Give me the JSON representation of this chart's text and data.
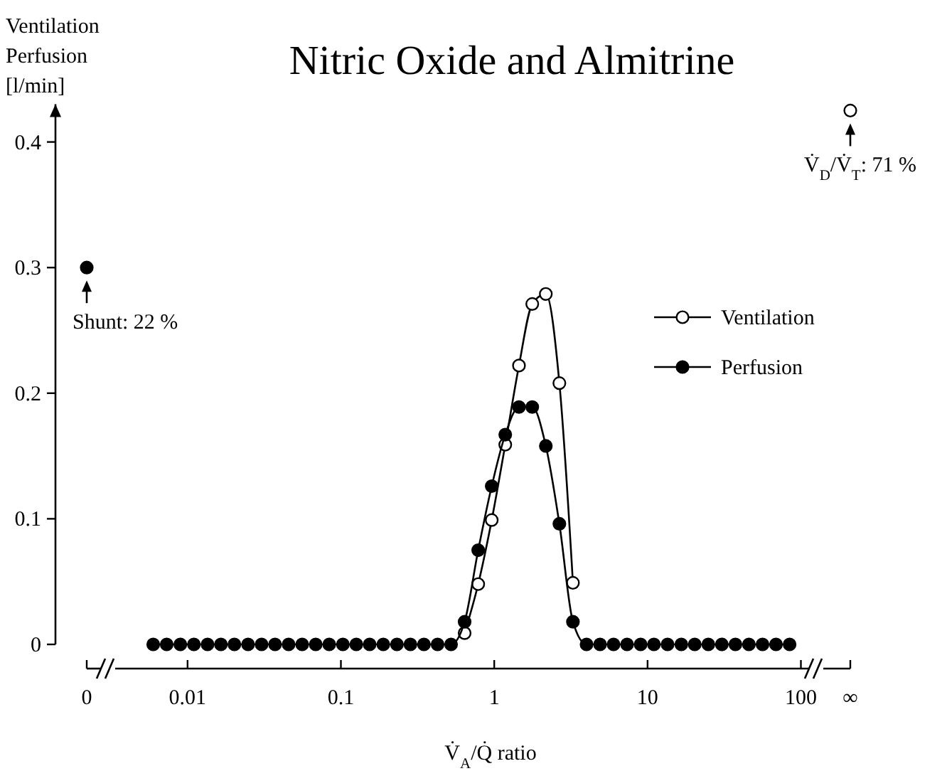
{
  "chart_data": {
    "type": "line",
    "title": "Nitric Oxide and Almitrine",
    "xlabel": "V̇$_{A}$/Q̇ ratio",
    "ylabel": "Ventilation\nPerfusion\n[l/min]",
    "log": "x",
    "xlim": [
      0.0022,
      210
    ],
    "xticks": [
      {
        "value": 0.0022,
        "label": "0"
      },
      0.01,
      0.1,
      1,
      10,
      100,
      {
        "value": 210,
        "label": "∞"
      }
    ],
    "ylim": [
      0,
      0.43
    ],
    "yticks": [
      0,
      0.1,
      0.2,
      0.3,
      0.4
    ],
    "grid": false,
    "legend": "top right",
    "marker": "circle",
    "line_style": "solid",
    "x": [
      0.00597,
      0.00731,
      0.00897,
      0.011,
      0.0135,
      0.0165,
      0.0202,
      0.0248,
      0.0304,
      0.0372,
      0.0456,
      0.0559,
      0.0685,
      0.0839,
      0.103,
      0.126,
      0.154,
      0.189,
      0.232,
      0.284,
      0.348,
      0.427,
      0.523,
      0.641,
      0.786,
      0.963,
      1.18,
      1.45,
      1.77,
      2.17,
      2.66,
      3.26,
      4.0,
      4.9,
      6.0,
      7.35,
      9.01,
      11.0,
      13.5,
      16.6,
      20.3,
      24.9,
      30.5,
      37.4,
      45.8,
      56.2,
      68.8,
      84.4
    ],
    "series": [
      {
        "name": "Ventilation",
        "color": "#ffffff",
        "x": [
          0.641,
          0.786,
          0.963,
          1.18,
          1.45,
          1.77,
          2.17,
          2.66,
          3.26
        ],
        "values": [
          0.009,
          0.048,
          0.099,
          0.159,
          0.222,
          0.271,
          0.279,
          0.208,
          0.049
        ]
      },
      {
        "name": "Perfusion",
        "color": "#000000",
        "values": [
          0,
          0,
          0,
          0,
          0,
          0,
          0,
          0,
          0,
          0,
          0,
          0,
          0,
          0,
          0,
          0,
          0,
          0,
          0,
          0,
          0,
          0,
          0,
          0.018,
          0.075,
          0.126,
          0.167,
          0.189,
          0.189,
          0.158,
          0.096,
          0.018,
          0,
          0,
          0,
          0,
          0,
          0,
          0,
          0,
          0,
          0,
          0,
          0,
          0,
          0,
          0,
          0
        ]
      },
      {
        "type": "scatter",
        "color": "#000000",
        "x": [
          0.0022
        ],
        "values": [
          0.3
        ]
      },
      {
        "type": "scatter",
        "color": "#ffffff",
        "x": [
          210
        ],
        "values": [
          0.425
        ]
      }
    ],
    "annotations": [
      {
        "text": "Shunt: 22 %",
        "x": 0.0022,
        "y": 0.3
      },
      {
        "text": "V̇$_{D}$/V̇$_{T}$: 71 %",
        "x": 210,
        "y": 0.425
      }
    ]
  }
}
